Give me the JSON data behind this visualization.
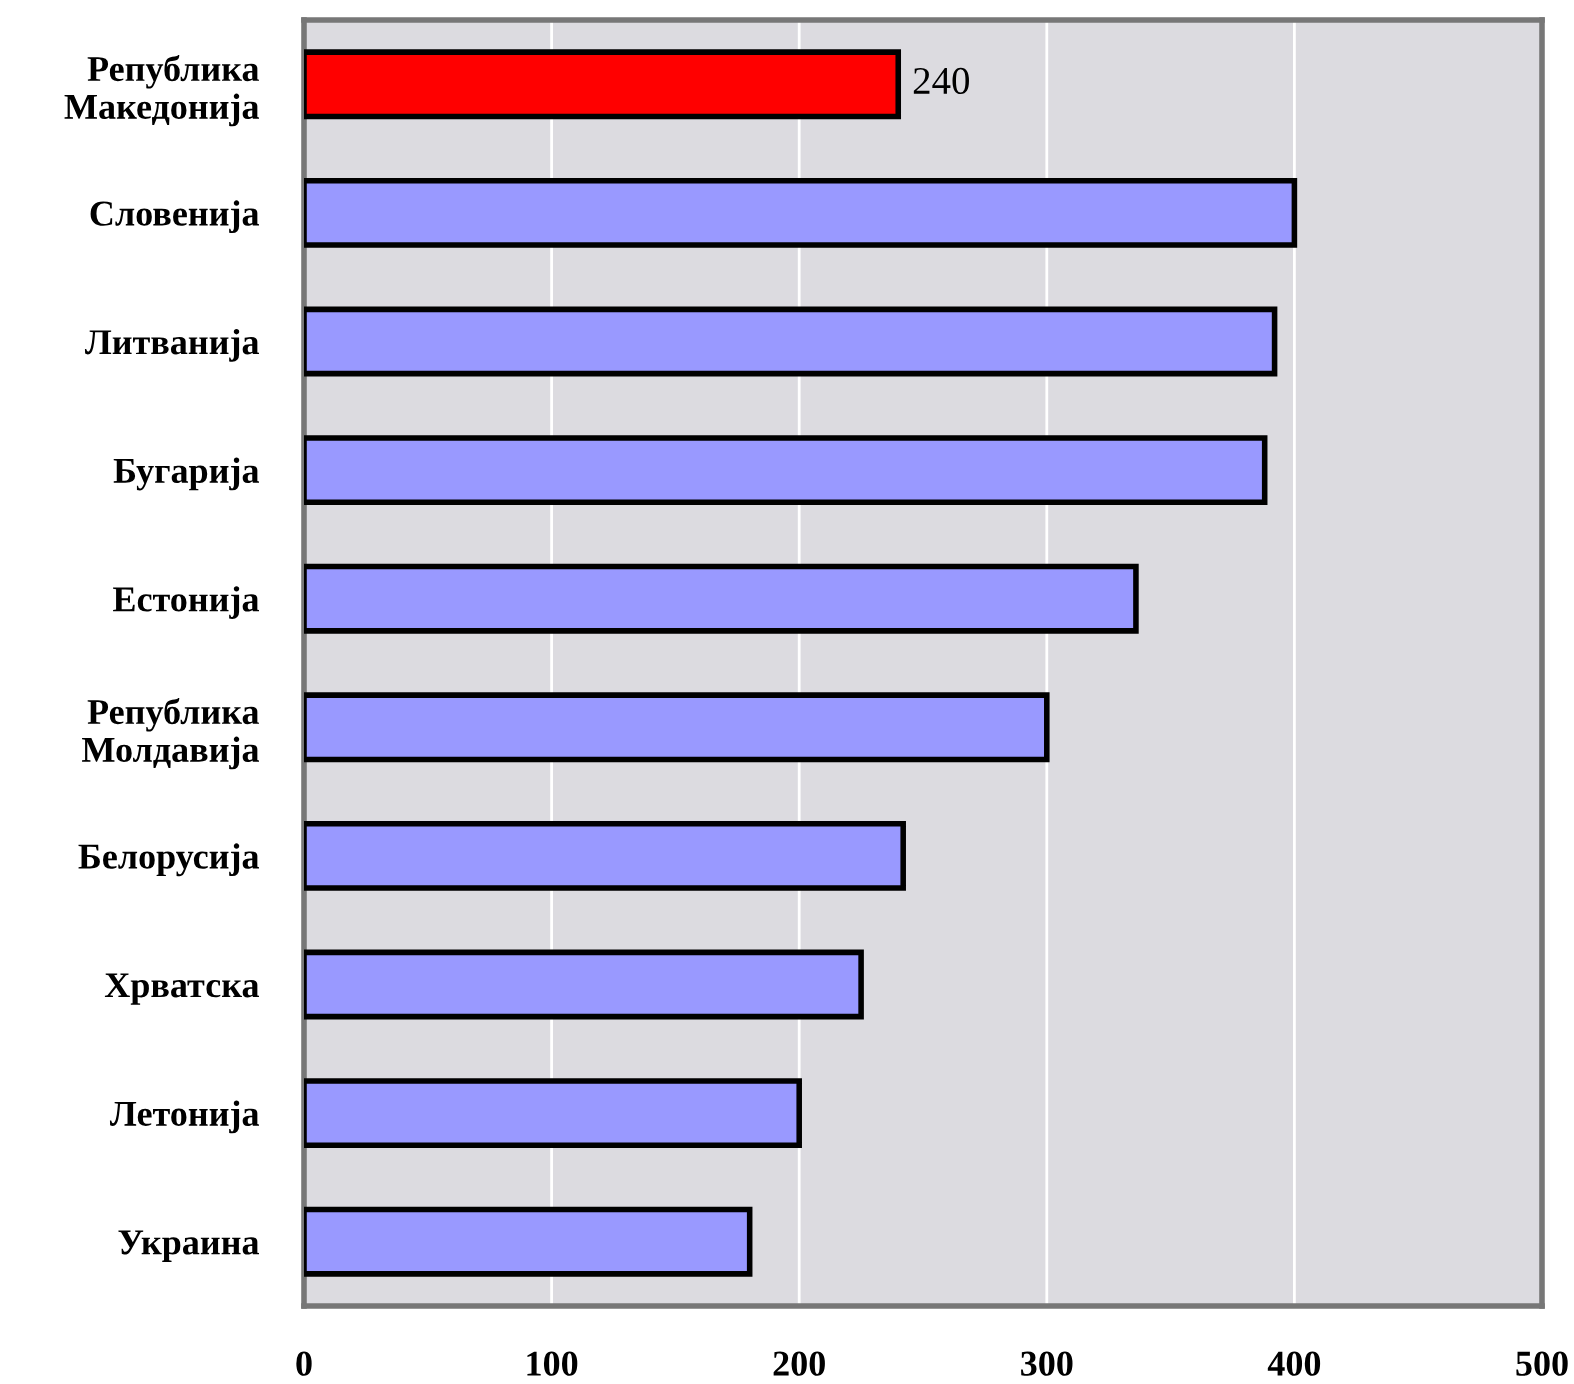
{
  "chart_data": {
    "type": "bar",
    "orientation": "horizontal",
    "categories": [
      "Република\nМакедонија",
      "Словенија",
      "Литванија",
      "Бугарија",
      "Естонија",
      "Република\nМолдавија",
      "Белорусија",
      "Хрватска",
      "Летонија",
      "Украина"
    ],
    "values": [
      240,
      400,
      392,
      388,
      336,
      300,
      242,
      225,
      200,
      180
    ],
    "colors": [
      "#ff0000",
      "#9999ff",
      "#9999ff",
      "#9999ff",
      "#9999ff",
      "#9999ff",
      "#9999ff",
      "#9999ff",
      "#9999ff",
      "#9999ff"
    ],
    "value_labels": [
      "240",
      null,
      null,
      null,
      null,
      null,
      null,
      null,
      null,
      null
    ],
    "xlim": [
      0,
      500
    ],
    "xticks": [
      0,
      100,
      200,
      300,
      400,
      500
    ],
    "grid": "x"
  }
}
